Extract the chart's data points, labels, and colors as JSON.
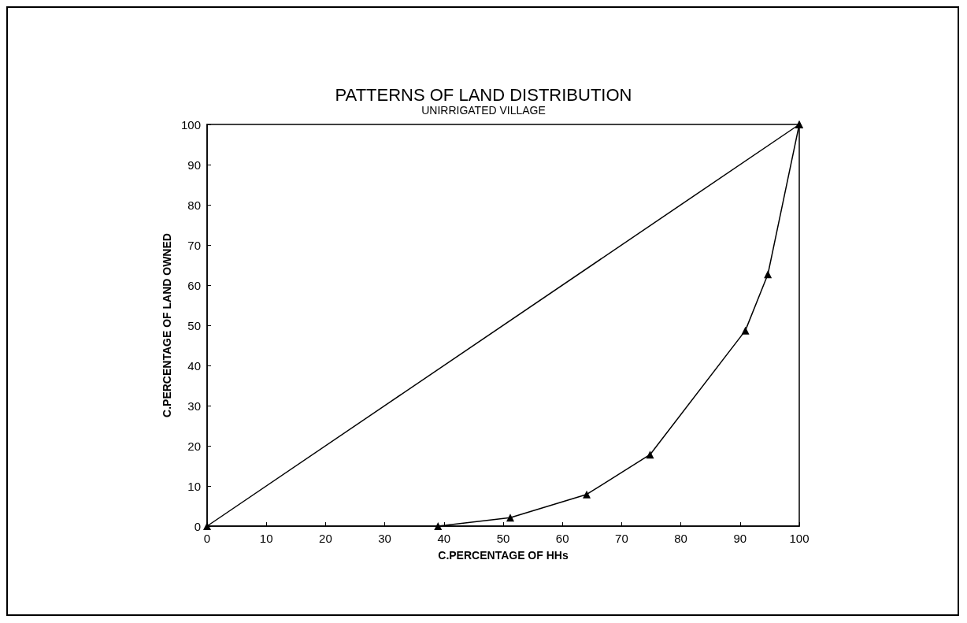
{
  "chart_data": {
    "type": "line",
    "title": "PATTERNS OF LAND DISTRIBUTION",
    "subtitle": "UNIRRIGATED VILLAGE",
    "xlabel": "C.PERCENTAGE OF HHs",
    "ylabel": "C.PERCENTAGE OF LAND OWNED",
    "xlim": [
      0,
      100
    ],
    "xticks": [
      0,
      10,
      20,
      30,
      40,
      50,
      60,
      70,
      80,
      90,
      100
    ],
    "ylim": [
      0,
      100
    ],
    "yticks": [
      0,
      10,
      20,
      30,
      40,
      50,
      60,
      70,
      80,
      90,
      100
    ],
    "series": [
      {
        "color": "#000000",
        "x": [
          0,
          100
        ],
        "values": [
          0,
          100
        ]
      },
      {
        "color": "#000000",
        "x": [
          39,
          51.2,
          64.1,
          74.8,
          90.9,
          94.7,
          100
        ],
        "values": [
          0,
          2.1,
          7.9,
          17.8,
          48.7,
          62.7,
          100
        ]
      }
    ],
    "marker": "triangle",
    "line_style": "solid",
    "grid": false
  }
}
